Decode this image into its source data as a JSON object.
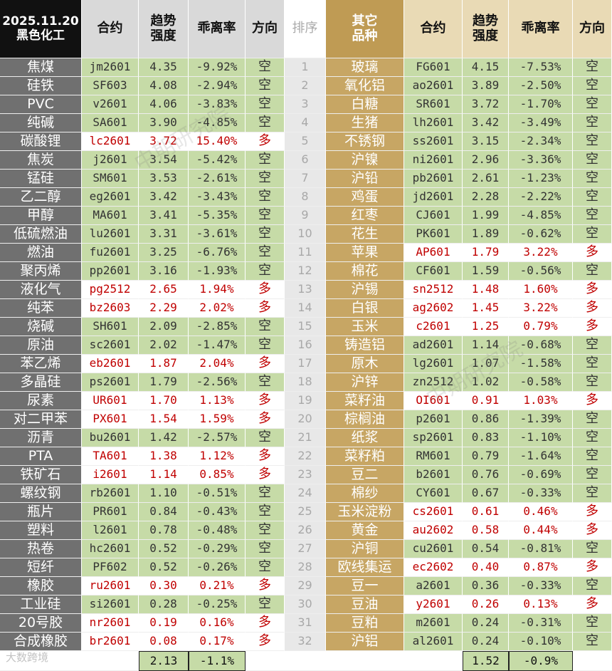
{
  "header": {
    "date": "2025.11.20",
    "sector": "黑色化工",
    "left_columns": [
      [
        "合约"
      ],
      [
        "趋势",
        "强度"
      ],
      [
        "乖离率"
      ],
      [
        "方向"
      ]
    ],
    "rank": "排序",
    "right_sector": [
      "其它",
      "品种"
    ],
    "right_columns": [
      [
        "合约"
      ],
      [
        "趋势",
        "强度"
      ],
      [
        "乖离率"
      ],
      [
        "方向"
      ]
    ]
  },
  "left_rows": [
    [
      "焦煤",
      "jm2601",
      "4.35",
      "-9.92%",
      "空"
    ],
    [
      "硅铁",
      "SF603",
      "4.08",
      "-2.94%",
      "空"
    ],
    [
      "PVC",
      "v2601",
      "4.06",
      "-3.83%",
      "空"
    ],
    [
      "纯碱",
      "SA601",
      "3.90",
      "-4.85%",
      "空"
    ],
    [
      "碳酸锂",
      "lc2601",
      "3.72",
      "15.40%",
      "多"
    ],
    [
      "焦炭",
      "j2601",
      "3.54",
      "-5.42%",
      "空"
    ],
    [
      "锰硅",
      "SM601",
      "3.53",
      "-2.61%",
      "空"
    ],
    [
      "乙二醇",
      "eg2601",
      "3.42",
      "-3.43%",
      "空"
    ],
    [
      "甲醇",
      "MA601",
      "3.41",
      "-5.35%",
      "空"
    ],
    [
      "低硫燃油",
      "lu2601",
      "3.31",
      "-3.61%",
      "空"
    ],
    [
      "燃油",
      "fu2601",
      "3.25",
      "-6.76%",
      "空"
    ],
    [
      "聚丙烯",
      "pp2601",
      "3.16",
      "-1.93%",
      "空"
    ],
    [
      "液化气",
      "pg2512",
      "2.65",
      "1.94%",
      "多"
    ],
    [
      "纯苯",
      "bz2603",
      "2.29",
      "2.02%",
      "多"
    ],
    [
      "烧碱",
      "SH601",
      "2.09",
      "-2.85%",
      "空"
    ],
    [
      "原油",
      "sc2601",
      "2.02",
      "-1.47%",
      "空"
    ],
    [
      "苯乙烯",
      "eb2601",
      "1.87",
      "2.04%",
      "多"
    ],
    [
      "多晶硅",
      "ps2601",
      "1.79",
      "-2.56%",
      "空"
    ],
    [
      "尿素",
      "UR601",
      "1.70",
      "1.13%",
      "多"
    ],
    [
      "对二甲苯",
      "PX601",
      "1.54",
      "1.59%",
      "多"
    ],
    [
      "沥青",
      "bu2601",
      "1.42",
      "-2.57%",
      "空"
    ],
    [
      "PTA",
      "TA601",
      "1.38",
      "1.12%",
      "多"
    ],
    [
      "铁矿石",
      "i2601",
      "1.14",
      "0.85%",
      "多"
    ],
    [
      "螺纹钢",
      "rb2601",
      "1.10",
      "-0.51%",
      "空"
    ],
    [
      "瓶片",
      "PR601",
      "0.84",
      "-0.43%",
      "空"
    ],
    [
      "塑料",
      "l2601",
      "0.78",
      "-0.48%",
      "空"
    ],
    [
      "热卷",
      "hc2601",
      "0.52",
      "-0.29%",
      "空"
    ],
    [
      "短纤",
      "PF602",
      "0.52",
      "-0.26%",
      "空"
    ],
    [
      "橡胶",
      "ru2601",
      "0.30",
      "0.21%",
      "多"
    ],
    [
      "工业硅",
      "si2601",
      "0.28",
      "-0.25%",
      "空"
    ],
    [
      "20号胶",
      "nr2601",
      "0.19",
      "0.16%",
      "多"
    ],
    [
      "合成橡胶",
      "br2601",
      "0.08",
      "0.17%",
      "多"
    ]
  ],
  "ranks": [
    "1",
    "2",
    "3",
    "4",
    "5",
    "6",
    "7",
    "8",
    "9",
    "10",
    "11",
    "12",
    "13",
    "14",
    "15",
    "16",
    "17",
    "18",
    "19",
    "20",
    "21",
    "22",
    "23",
    "24",
    "25",
    "26",
    "27",
    "28",
    "29",
    "30",
    "31",
    "32"
  ],
  "right_rows": [
    [
      "玻璃",
      "FG601",
      "4.15",
      "-7.53%",
      "空"
    ],
    [
      "氧化铝",
      "ao2601",
      "3.89",
      "-2.50%",
      "空"
    ],
    [
      "白糖",
      "SR601",
      "3.72",
      "-1.70%",
      "空"
    ],
    [
      "生猪",
      "lh2601",
      "3.42",
      "-3.49%",
      "空"
    ],
    [
      "不锈钢",
      "ss2601",
      "3.15",
      "-2.34%",
      "空"
    ],
    [
      "沪镍",
      "ni2601",
      "2.96",
      "-3.36%",
      "空"
    ],
    [
      "沪铅",
      "pb2601",
      "2.61",
      "-1.23%",
      "空"
    ],
    [
      "鸡蛋",
      "jd2601",
      "2.28",
      "-2.22%",
      "空"
    ],
    [
      "红枣",
      "CJ601",
      "1.99",
      "-4.85%",
      "空"
    ],
    [
      "花生",
      "PK601",
      "1.89",
      "-0.62%",
      "空"
    ],
    [
      "苹果",
      "AP601",
      "1.79",
      "3.22%",
      "多"
    ],
    [
      "棉花",
      "CF601",
      "1.59",
      "-0.56%",
      "空"
    ],
    [
      "沪锡",
      "sn2512",
      "1.48",
      "1.60%",
      "多"
    ],
    [
      "白银",
      "ag2602",
      "1.45",
      "3.22%",
      "多"
    ],
    [
      "玉米",
      "c2601",
      "1.25",
      "0.79%",
      "多"
    ],
    [
      "铸造铝",
      "ad2601",
      "1.14",
      "-0.68%",
      "空"
    ],
    [
      "原木",
      "lg2601",
      "1.07",
      "-1.58%",
      "空"
    ],
    [
      "沪锌",
      "zn2512",
      "1.02",
      "-0.58%",
      "空"
    ],
    [
      "菜籽油",
      "OI601",
      "0.91",
      "1.03%",
      "多"
    ],
    [
      "棕榈油",
      "p2601",
      "0.86",
      "-1.39%",
      "空"
    ],
    [
      "纸浆",
      "sp2601",
      "0.83",
      "-1.10%",
      "空"
    ],
    [
      "菜籽粕",
      "RM601",
      "0.79",
      "-1.64%",
      "空"
    ],
    [
      "豆二",
      "b2601",
      "0.76",
      "-0.69%",
      "空"
    ],
    [
      "棉纱",
      "CY601",
      "0.67",
      "-0.33%",
      "空"
    ],
    [
      "玉米淀粉",
      "cs2601",
      "0.61",
      "0.46%",
      "多"
    ],
    [
      "黄金",
      "au2602",
      "0.58",
      "0.44%",
      "多"
    ],
    [
      "沪铜",
      "cu2601",
      "0.54",
      "-0.81%",
      "空"
    ],
    [
      "欧线集运",
      "ec2602",
      "0.40",
      "0.87%",
      "多"
    ],
    [
      "豆一",
      "a2601",
      "0.36",
      "-0.33%",
      "空"
    ],
    [
      "豆油",
      "y2601",
      "0.26",
      "0.13%",
      "多"
    ],
    [
      "豆粕",
      "m2601",
      "0.24",
      "-0.31%",
      "空"
    ],
    [
      "沪铝",
      "al2601",
      "0.24",
      "-0.10%",
      "空"
    ]
  ],
  "footer": {
    "left": [
      "2.13",
      "-1.1%"
    ],
    "right": [
      "1.52",
      "-0.9%"
    ]
  },
  "watermarks": [
    "中期研究院",
    "中期研究院",
    "大数跨境"
  ]
}
